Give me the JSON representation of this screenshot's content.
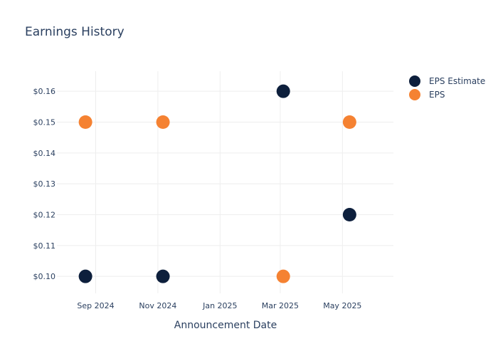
{
  "chart_data": {
    "type": "scatter",
    "title": "Earnings History",
    "xlabel": "Announcement Date",
    "ylabel": "",
    "x_axis_type": "date",
    "xlim": [
      "2024-07-25",
      "2025-06-20"
    ],
    "ylim": [
      0.0945,
      0.1665
    ],
    "x_ticks": [
      {
        "value": "2024-09-01",
        "label": "Sep 2024"
      },
      {
        "value": "2024-11-01",
        "label": "Nov 2024"
      },
      {
        "value": "2025-01-01",
        "label": "Jan 2025"
      },
      {
        "value": "2025-03-01",
        "label": "Mar 2025"
      },
      {
        "value": "2025-05-01",
        "label": "May 2025"
      }
    ],
    "y_ticks": [
      {
        "value": 0.1,
        "label": "$0.10"
      },
      {
        "value": 0.11,
        "label": "$0.11"
      },
      {
        "value": 0.12,
        "label": "$0.12"
      },
      {
        "value": 0.13,
        "label": "$0.13"
      },
      {
        "value": 0.14,
        "label": "$0.14"
      },
      {
        "value": 0.15,
        "label": "$0.15"
      },
      {
        "value": 0.16,
        "label": "$0.16"
      }
    ],
    "grid": true,
    "legend_position": "top-right",
    "series": [
      {
        "name": "EPS Estimate",
        "color": "#0d1f3c",
        "points": [
          {
            "x": "2024-08-22",
            "y": 0.1
          },
          {
            "x": "2024-11-06",
            "y": 0.1
          },
          {
            "x": "2025-03-04",
            "y": 0.16
          },
          {
            "x": "2025-05-08",
            "y": 0.12
          }
        ]
      },
      {
        "name": "EPS",
        "color": "#f58232",
        "points": [
          {
            "x": "2024-08-22",
            "y": 0.15
          },
          {
            "x": "2024-11-06",
            "y": 0.15
          },
          {
            "x": "2025-03-04",
            "y": 0.1
          },
          {
            "x": "2025-05-08",
            "y": 0.15
          }
        ]
      }
    ]
  }
}
